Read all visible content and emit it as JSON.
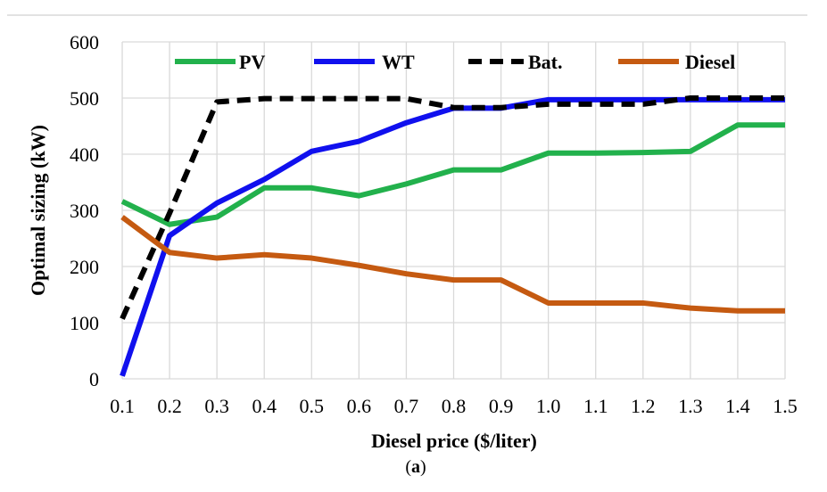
{
  "chart_data": {
    "type": "line",
    "title": "",
    "xlabel": "Diesel price ($/liter)",
    "ylabel": "Optimal sizing (kW)",
    "caption": {
      "open": "(",
      "letter": "a",
      "close": ")"
    },
    "x": [
      0.1,
      0.2,
      0.3,
      0.4,
      0.5,
      0.6,
      0.7,
      0.8,
      0.9,
      1.0,
      1.1,
      1.2,
      1.3,
      1.4,
      1.5
    ],
    "x_tick_labels": [
      "0.1",
      "0.2",
      "0.3",
      "0.4",
      "0.5",
      "0.6",
      "0.7",
      "0.8",
      "0.9",
      "1.0",
      "1.1",
      "1.2",
      "1.3",
      "1.4",
      "1.5"
    ],
    "xlim": [
      0.1,
      1.5
    ],
    "ylim": [
      0,
      600
    ],
    "y_ticks": [
      0,
      100,
      200,
      300,
      400,
      500,
      600
    ],
    "y_tick_labels": [
      "0",
      "100",
      "200",
      "300",
      "400",
      "500",
      "600"
    ],
    "grid": true,
    "legend_position": "top",
    "series": [
      {
        "name": "PV",
        "color": "#22b14c",
        "dash": "solid",
        "values": [
          316,
          275,
          288,
          340,
          340,
          326,
          347,
          372,
          372,
          402,
          402,
          403,
          405,
          452,
          452
        ]
      },
      {
        "name": "WT",
        "color": "#1010ee",
        "dash": "solid",
        "values": [
          5,
          255,
          313,
          355,
          405,
          423,
          456,
          482,
          482,
          497,
          497,
          497,
          497,
          497,
          497
        ]
      },
      {
        "name": "Bat.",
        "color": "#000000",
        "dash": "dashed",
        "values": [
          107,
          295,
          493,
          499,
          499,
          499,
          499,
          483,
          483,
          489,
          489,
          489,
          500,
          500,
          500
        ]
      },
      {
        "name": "Diesel",
        "color": "#c55a11",
        "dash": "solid",
        "values": [
          288,
          225,
          215,
          221,
          215,
          202,
          187,
          176,
          176,
          135,
          135,
          135,
          126,
          121,
          121
        ]
      }
    ]
  }
}
